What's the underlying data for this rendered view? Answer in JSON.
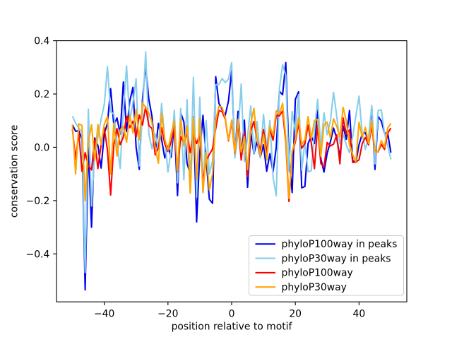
{
  "chart_data": {
    "type": "line",
    "title": "",
    "xlabel": "position relative to motif",
    "ylabel": "conservation score",
    "xlim": [
      -55,
      55
    ],
    "ylim": [
      -0.58,
      0.4
    ],
    "xticks": [
      -40,
      -20,
      0,
      20,
      40
    ],
    "yticks": [
      -0.4,
      -0.2,
      0.0,
      0.2,
      0.4
    ],
    "grid": false,
    "legend_position": "lower right",
    "x": [
      -50,
      -49,
      -48,
      -47,
      -46,
      -45,
      -44,
      -43,
      -42,
      -41,
      -40,
      -39,
      -38,
      -37,
      -36,
      -35,
      -34,
      -33,
      -32,
      -31,
      -30,
      -29,
      -28,
      -27,
      -26,
      -25,
      -24,
      -23,
      -22,
      -21,
      -20,
      -19,
      -18,
      -17,
      -16,
      -15,
      -14,
      -13,
      -12,
      -11,
      -10,
      -9,
      -8,
      -7,
      -6,
      -5,
      -4,
      -3,
      -2,
      -1,
      0,
      1,
      2,
      3,
      4,
      5,
      6,
      7,
      8,
      9,
      10,
      11,
      12,
      13,
      14,
      15,
      16,
      17,
      18,
      19,
      20,
      21,
      22,
      23,
      24,
      25,
      26,
      27,
      28,
      29,
      30,
      31,
      32,
      33,
      34,
      35,
      36,
      37,
      38,
      39,
      40,
      41,
      42,
      43,
      44,
      45,
      46,
      47,
      48,
      49,
      50
    ],
    "series": [
      {
        "name": "phyloP100way in peaks",
        "color": "#0000ee",
        "values": [
          0.085,
          0.06,
          0.062,
          0.03,
          -0.535,
          0,
          -0.3,
          0.035,
          0.007,
          -0.078,
          0.05,
          0.09,
          0.22,
          0.084,
          0.11,
          0.05,
          0.245,
          0.059,
          0.173,
          0.225,
          0,
          -0.083,
          0.18,
          0.303,
          0.18,
          0.115,
          -0.02,
          0.09,
          0.03,
          -0.04,
          0.005,
          -0.037,
          0.0885,
          -0.181,
          0.13,
          0.095,
          -0.06,
          -0.1,
          0.115,
          -0.28,
          -0.02,
          0.12,
          -0.045,
          -0.195,
          -0.21,
          0.265,
          0.165,
          0.142,
          0.12,
          0.174,
          0.287,
          -0.027,
          0.135,
          -0.031,
          0.102,
          -0.15,
          0.053,
          -0.024,
          0.022,
          -0.037,
          0.009,
          -0.09,
          -0.024,
          -0.092,
          0,
          0.21,
          0.1975,
          0.318,
          -0.035,
          -0.17,
          0.18,
          0.208,
          -0.152,
          -0.147,
          0.014,
          0.042,
          0.014,
          0.14,
          -0.042,
          -0.093,
          -0.022,
          0.02,
          0.072,
          0.034,
          -0.037,
          0.08,
          0.03,
          0.138,
          -0.05,
          -0.057,
          0.01,
          0.05,
          0.055,
          0.0185,
          0.152,
          -0.083,
          0.116,
          0.098,
          0.053,
          0.053,
          -0.02
        ]
      },
      {
        "name": "phyloP30way in peaks",
        "color": "#87ceeb",
        "values": [
          0.117,
          0.091,
          0.072,
          0.058,
          -0.47,
          0.143,
          -0.22,
          -0.025,
          0.037,
          0.105,
          0.16,
          0.303,
          0.133,
          0.125,
          0.02,
          -0.079,
          0.14,
          0.305,
          0.101,
          0.166,
          0.257,
          -0.07,
          0.128,
          0.358,
          0.05,
          -0.006,
          0.05,
          -0.0075,
          0.164,
          0.03,
          -0.093,
          -0.01,
          0.139,
          -0.133,
          0.146,
          -0.122,
          0.179,
          -0.142,
          0.262,
          -0.187,
          0.188,
          -0.17,
          0.1,
          -0.1,
          -0.05,
          0.235,
          0.236,
          0.258,
          0.243,
          0.256,
          0.3176,
          -0.04,
          0.05,
          0.2375,
          -0.053,
          0.04,
          0.155,
          -0.022,
          0.097,
          -0.04,
          0.124,
          -0.004,
          0.1,
          -0.112,
          -0.182,
          0.22,
          0.31,
          0.27,
          -0.09,
          0.1345,
          0.06,
          0.198,
          -0.085,
          0.02,
          -0.092,
          -0.088,
          0.06,
          0.18,
          0,
          0.129,
          0.047,
          0.098,
          0.206,
          0.117,
          0.014,
          0.049,
          0.009,
          -0.02,
          0.04,
          0.117,
          0.192,
          0.05,
          -0.008,
          0.04,
          0.157,
          -0.062,
          0.138,
          0.14,
          0.053,
          0.006,
          -0.046
        ]
      },
      {
        "name": "phyloP100way",
        "color": "#ff0000",
        "values": [
          0.068,
          -0.045,
          0.055,
          -0.09,
          -0.02,
          -0.07,
          -0.085,
          0.029,
          -0.08,
          0.01,
          0.073,
          -0.01,
          -0.179,
          0.01,
          0.07,
          0.01,
          0.039,
          0.116,
          0.0735,
          0.098,
          0.0387,
          0.121,
          0.0835,
          0.152,
          0.082,
          0.07,
          -0.0285,
          0,
          0.073,
          0.013,
          -0.014,
          0.02,
          0.071,
          -0.091,
          0.04,
          0.018,
          0.051,
          -0.02,
          0.05,
          0.014,
          0.049,
          -0.13,
          -0.05,
          -0.027,
          -0.006,
          0.07,
          0.138,
          0.134,
          0.106,
          0.024,
          0.095,
          -0.022,
          0.095,
          -0.048,
          0.058,
          -0.11,
          0.062,
          0.097,
          0.03,
          -0.013,
          0.0665,
          -0.022,
          0.071,
          0.0265,
          0.12,
          0.118,
          0.137,
          0.02,
          -0.203,
          -0.02,
          0.02,
          0.09,
          -0.004,
          0.014,
          0.084,
          0.016,
          -0.08,
          0.084,
          -0.061,
          -0.074,
          0.018,
          0.005,
          0.012,
          0.047,
          -0.062,
          0.11,
          0.049,
          0.0655,
          -0.057,
          -0.055,
          -0.047,
          0.014,
          0.037,
          0.009,
          0.0795,
          -0.013,
          -0.017,
          0.011,
          -0.008,
          0.053,
          0.072
        ]
      },
      {
        "name": "phyloP30way",
        "color": "#ffa500",
        "values": [
          0.085,
          -0.1,
          0.088,
          0.082,
          -0.2,
          0.02,
          0.085,
          -0.05,
          0.086,
          0.01,
          0.087,
          0.115,
          -0.1,
          0.09,
          -0.033,
          0.065,
          0.0785,
          0.019,
          0.121,
          0.054,
          0.143,
          0.029,
          0.166,
          0.15,
          0.128,
          0.093,
          0,
          -0.06,
          0.127,
          0.03,
          -0.01,
          0.05,
          0.1,
          -0.088,
          0.105,
          0.005,
          0.08,
          -0.172,
          0.113,
          -0.12,
          0.108,
          -0.17,
          -0.02,
          -0.16,
          -0.1,
          0.1,
          0.154,
          0.15,
          0.111,
          0.0265,
          0.1016,
          -0.0205,
          0.105,
          -0.0175,
          0.04,
          -0.084,
          0.089,
          0.146,
          0.031,
          -0.031,
          0.049,
          -0.048,
          0.078,
          0.045,
          0.137,
          0.125,
          0.165,
          0.036,
          -0.192,
          -0.015,
          0.03,
          0.111,
          0.01,
          0.028,
          0.115,
          0.033,
          0.1,
          0.105,
          -0.033,
          0.085,
          0.094,
          0.034,
          0.107,
          0.0786,
          0.04,
          0.15,
          0.098,
          0.009,
          -0.027,
          -0.055,
          0.094,
          0.037,
          0.075,
          0.014,
          0.1,
          -0.017,
          -0.015,
          0.025,
          0,
          0.072,
          0.09
        ]
      }
    ]
  }
}
